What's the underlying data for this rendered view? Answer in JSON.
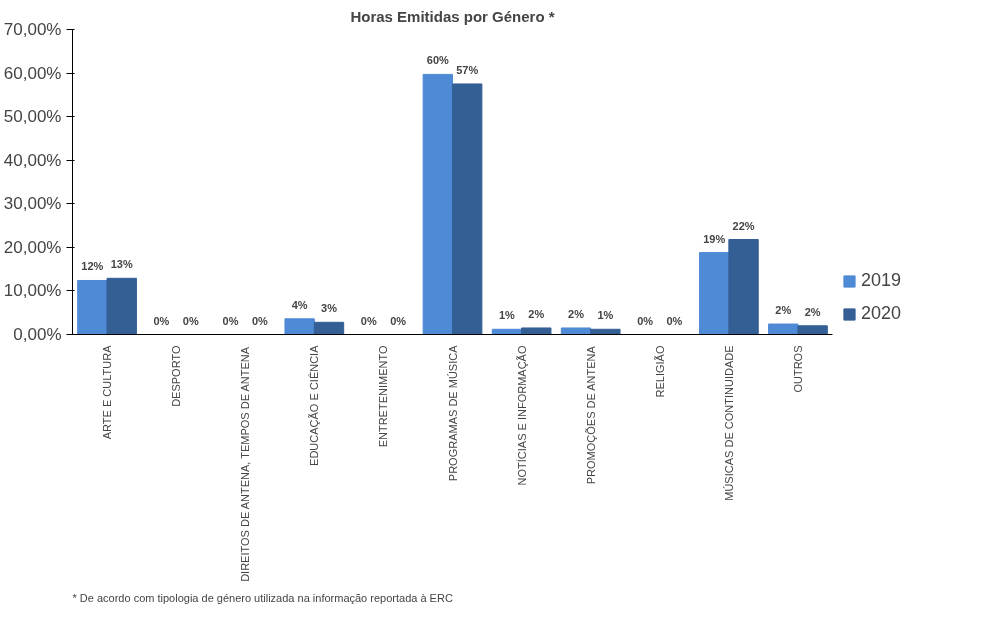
{
  "chart_data": {
    "type": "bar",
    "title": "Horas Emitidas por Género *",
    "categories": [
      "ARTE E CULTURA",
      "DESPORTO",
      "DIREITOS DE ANTENA, TEMPOS DE ANTENA",
      "EDUCAÇÃO E CIÊNCIA",
      "ENTRETENIMENTO",
      "PROGRAMAS DE MÚSICA",
      "NOTÍCIAS E INFORMAÇÃO",
      "PROMOÇÕES DE ANTENA",
      "RELIGIÃO",
      "MÚSICAS DE CONTINUIDADE",
      "OUTROS"
    ],
    "series": [
      {
        "name": "2019",
        "color": "#4f8ad6",
        "values": [
          12.4,
          0,
          0,
          3.6,
          0,
          59.7,
          1.2,
          1.5,
          0,
          18.8,
          2.4
        ],
        "value_labels": [
          "12%",
          "0%",
          "0%",
          "4%",
          "0%",
          "60%",
          "1%",
          "2%",
          "0%",
          "19%",
          "2%"
        ]
      },
      {
        "name": "2020",
        "color": "#335f95",
        "values": [
          12.9,
          0,
          0,
          2.8,
          0,
          57.5,
          1.5,
          1.2,
          0,
          21.8,
          2.0
        ],
        "value_labels": [
          "13%",
          "0%",
          "0%",
          "3%",
          "0%",
          "57%",
          "2%",
          "1%",
          "0%",
          "22%",
          "2%"
        ]
      }
    ],
    "ylim": [
      0,
      70
    ],
    "yticks": [
      {
        "value": 0,
        "label": "0,00%"
      },
      {
        "value": 10,
        "label": "10,00%"
      },
      {
        "value": 20,
        "label": "20,00%"
      },
      {
        "value": 30,
        "label": "30,00%"
      },
      {
        "value": 40,
        "label": "40,00%"
      },
      {
        "value": 50,
        "label": "50,00%"
      },
      {
        "value": 60,
        "label": "60,00%"
      },
      {
        "value": 70,
        "label": "70,00%"
      }
    ],
    "grid": false,
    "legend": "right",
    "annotations": [
      "* De acordo com tipologia de género utilizada na informação reportada à ERC"
    ]
  }
}
